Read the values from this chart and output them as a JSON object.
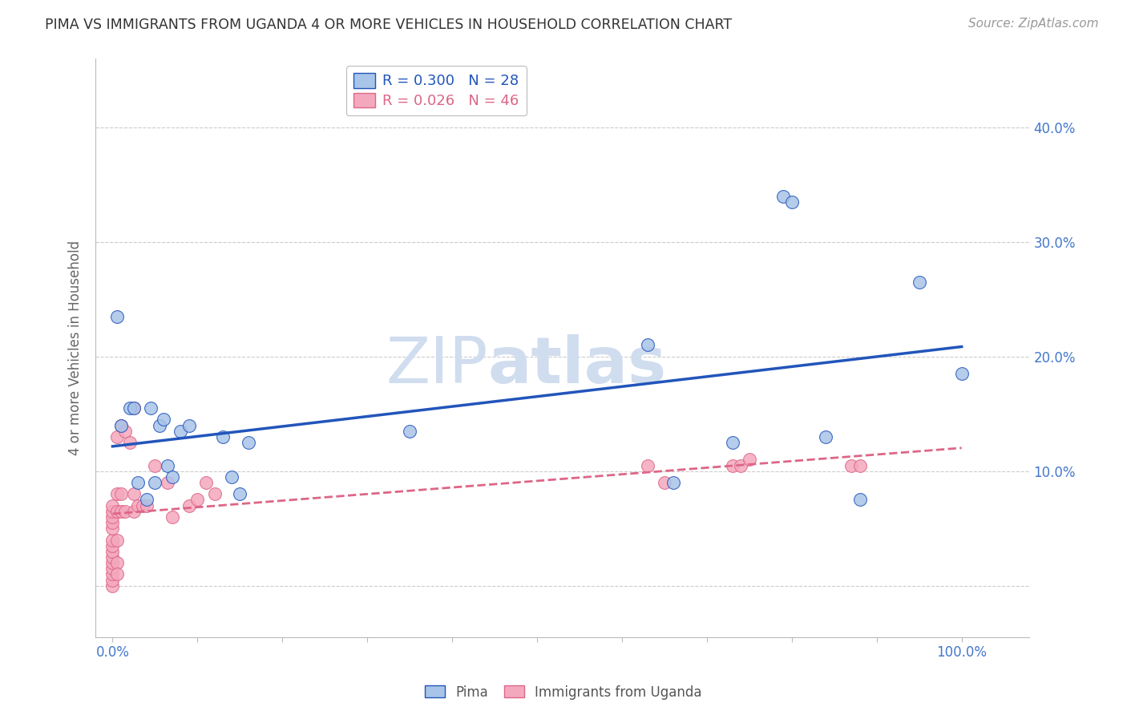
{
  "title": "PIMA VS IMMIGRANTS FROM UGANDA 4 OR MORE VEHICLES IN HOUSEHOLD CORRELATION CHART",
  "source": "Source: ZipAtlas.com",
  "ylabel": "4 or more Vehicles in Household",
  "legend_r_blue": "R = 0.300",
  "legend_n_blue": "N = 28",
  "legend_r_pink": "R = 0.026",
  "legend_n_pink": "N = 46",
  "legend_label_blue": "Pima",
  "legend_label_pink": "Immigrants from Uganda",
  "blue_color": "#A8C4E8",
  "pink_color": "#F4A8BE",
  "blue_line_color": "#2255BB",
  "pink_line_color": "#DD6688",
  "background_color": "#ffffff",
  "grid_color": "#CCCCCC",
  "title_color": "#333333",
  "axis_label_color": "#666666",
  "tick_label_color": "#4477CC",
  "watermark_color": "#D0DDEF",
  "xlim": [
    -0.02,
    1.08
  ],
  "ylim": [
    -0.045,
    0.46
  ],
  "pima_x": [
    0.005,
    0.01,
    0.02,
    0.025,
    0.03,
    0.04,
    0.045,
    0.05,
    0.055,
    0.06,
    0.065,
    0.07,
    0.08,
    0.09,
    0.13,
    0.14,
    0.15,
    0.16,
    0.35,
    0.63,
    0.66,
    0.73,
    0.79,
    0.8,
    0.84,
    0.88,
    0.95,
    1.0
  ],
  "pima_y": [
    0.235,
    0.14,
    0.155,
    0.155,
    0.09,
    0.075,
    0.155,
    0.09,
    0.14,
    0.145,
    0.105,
    0.095,
    0.135,
    0.14,
    0.13,
    0.095,
    0.08,
    0.125,
    0.135,
    0.21,
    0.09,
    0.125,
    0.34,
    0.335,
    0.13,
    0.075,
    0.265,
    0.185
  ],
  "uganda_x": [
    0.0,
    0.0,
    0.0,
    0.0,
    0.0,
    0.0,
    0.0,
    0.0,
    0.0,
    0.0,
    0.0,
    0.0,
    0.0,
    0.0,
    0.005,
    0.005,
    0.005,
    0.005,
    0.005,
    0.005,
    0.01,
    0.01,
    0.01,
    0.015,
    0.015,
    0.02,
    0.025,
    0.025,
    0.025,
    0.03,
    0.035,
    0.04,
    0.05,
    0.065,
    0.07,
    0.09,
    0.1,
    0.11,
    0.12,
    0.63,
    0.65,
    0.73,
    0.74,
    0.75,
    0.87,
    0.88
  ],
  "uganda_y": [
    0.0,
    0.005,
    0.01,
    0.015,
    0.02,
    0.025,
    0.03,
    0.035,
    0.04,
    0.05,
    0.055,
    0.06,
    0.065,
    0.07,
    0.13,
    0.08,
    0.065,
    0.04,
    0.02,
    0.01,
    0.14,
    0.08,
    0.065,
    0.135,
    0.065,
    0.125,
    0.155,
    0.08,
    0.065,
    0.07,
    0.07,
    0.07,
    0.105,
    0.09,
    0.06,
    0.07,
    0.075,
    0.09,
    0.08,
    0.105,
    0.09,
    0.105,
    0.105,
    0.11,
    0.105,
    0.105
  ]
}
